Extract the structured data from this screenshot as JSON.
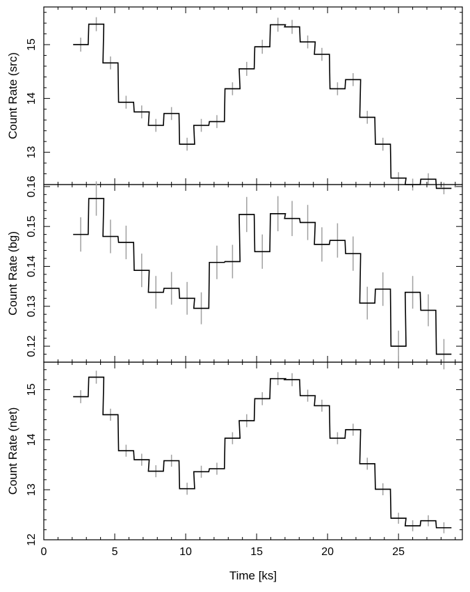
{
  "chart_data": [
    {
      "type": "line",
      "step": true,
      "ylabel": "Count Rate (src)",
      "xlim": [
        0,
        29.5
      ],
      "ylim": [
        12.4,
        15.7
      ],
      "y_major_ticks": [
        13,
        14,
        15
      ],
      "y_tick_labels": [
        "13",
        "14",
        "15"
      ],
      "error_color": "#a0a0a0",
      "line_color": "#000000",
      "series": [
        {
          "x": [
            2.6,
            3.7,
            4.7,
            5.8,
            6.9,
            7.9,
            9.0,
            10.1,
            11.1,
            12.2,
            13.3,
            14.3,
            15.4,
            16.5,
            17.5,
            18.6,
            19.6,
            20.7,
            21.8,
            22.8,
            23.9,
            25.0,
            26.0,
            27.1,
            28.2
          ],
          "y": [
            15.0,
            15.38,
            14.66,
            13.93,
            13.75,
            13.5,
            13.72,
            13.15,
            13.5,
            13.57,
            14.18,
            14.55,
            14.96,
            15.37,
            15.33,
            15.05,
            14.82,
            14.18,
            14.35,
            13.65,
            13.15,
            12.52,
            12.4,
            12.5,
            12.33
          ],
          "yerr": [
            0.13,
            0.13,
            0.12,
            0.12,
            0.12,
            0.12,
            0.12,
            0.12,
            0.12,
            0.12,
            0.12,
            0.13,
            0.13,
            0.13,
            0.13,
            0.12,
            0.12,
            0.12,
            0.12,
            0.12,
            0.12,
            0.11,
            0.11,
            0.11,
            0.11
          ],
          "xerr": 0.53
        }
      ]
    },
    {
      "type": "line",
      "step": true,
      "ylabel": "Count Rate (bg)",
      "xlim": [
        0,
        29.5
      ],
      "ylim": [
        0.116,
        0.1605
      ],
      "y_major_ticks": [
        0.12,
        0.13,
        0.14,
        0.15,
        0.16
      ],
      "y_tick_labels": [
        "0.12",
        "0.13",
        "0.14",
        "0.15",
        "0.16"
      ],
      "error_color": "#a0a0a0",
      "line_color": "#000000",
      "series": [
        {
          "x": [
            2.6,
            3.7,
            4.7,
            5.8,
            6.9,
            7.9,
            9.0,
            10.1,
            11.1,
            12.2,
            13.3,
            14.3,
            15.4,
            16.5,
            17.5,
            18.6,
            19.6,
            20.7,
            21.8,
            22.8,
            23.9,
            25.0,
            26.0,
            27.1,
            28.2
          ],
          "y": [
            0.148,
            0.157,
            0.1475,
            0.146,
            0.139,
            0.1335,
            0.1345,
            0.132,
            0.1295,
            0.141,
            0.1412,
            0.153,
            0.1437,
            0.1532,
            0.152,
            0.151,
            0.1455,
            0.1465,
            0.1432,
            0.1308,
            0.1343,
            0.12,
            0.1335,
            0.129,
            0.118
          ],
          "yerr": [
            0.0043,
            0.0043,
            0.0042,
            0.0042,
            0.0042,
            0.0041,
            0.0041,
            0.0041,
            0.004,
            0.0042,
            0.0042,
            0.0044,
            0.0043,
            0.0044,
            0.0044,
            0.0044,
            0.0043,
            0.0043,
            0.0043,
            0.0041,
            0.0042,
            0.0039,
            0.0041,
            0.004,
            0.0038
          ],
          "xerr": 0.53
        }
      ]
    },
    {
      "type": "line",
      "step": true,
      "xlabel": "Time [ks]",
      "ylabel": "Count Rate (net)",
      "xlim": [
        0,
        29.5
      ],
      "ylim": [
        12.0,
        15.55
      ],
      "x_major_ticks": [
        0,
        5,
        10,
        15,
        20,
        25
      ],
      "x_tick_labels": [
        "0",
        "5",
        "10",
        "15",
        "20",
        "25"
      ],
      "y_major_ticks": [
        12,
        13,
        14,
        15
      ],
      "y_tick_labels": [
        "12",
        "13",
        "14",
        "15"
      ],
      "error_color": "#a0a0a0",
      "line_color": "#000000",
      "series": [
        {
          "x": [
            2.6,
            3.7,
            4.7,
            5.8,
            6.9,
            7.9,
            9.0,
            10.1,
            11.1,
            12.2,
            13.3,
            14.3,
            15.4,
            16.5,
            17.5,
            18.6,
            19.6,
            20.7,
            21.8,
            22.8,
            23.9,
            25.0,
            26.0,
            27.1,
            28.2
          ],
          "y": [
            14.86,
            15.25,
            14.5,
            13.78,
            13.6,
            13.37,
            13.58,
            13.02,
            13.36,
            13.42,
            14.03,
            14.38,
            14.82,
            15.22,
            15.2,
            14.88,
            14.68,
            14.03,
            14.2,
            13.52,
            13.01,
            12.43,
            12.28,
            12.38,
            12.24
          ],
          "yerr": [
            0.13,
            0.13,
            0.12,
            0.12,
            0.12,
            0.12,
            0.12,
            0.12,
            0.12,
            0.12,
            0.12,
            0.13,
            0.13,
            0.13,
            0.13,
            0.12,
            0.12,
            0.12,
            0.12,
            0.12,
            0.12,
            0.11,
            0.11,
            0.11,
            0.11
          ],
          "xerr": 0.53
        }
      ]
    }
  ]
}
